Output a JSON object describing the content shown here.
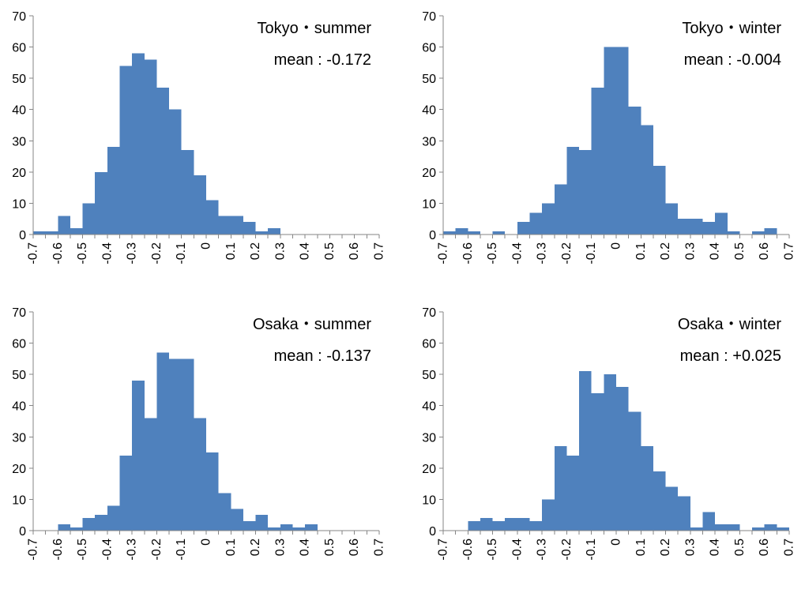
{
  "chart_data": [
    {
      "type": "bar",
      "title": "Tokyo・summer",
      "annotation": "mean : -0.172",
      "x_tick_labels": [
        "-0.7",
        "-0.6",
        "-0.5",
        "-0.4",
        "-0.3",
        "-0.2",
        "-0.1",
        "0",
        "0.1",
        "0.2",
        "0.3",
        "0.4",
        "0.5",
        "0.6",
        "0.7"
      ],
      "x_range": [
        -0.7,
        0.7
      ],
      "bin_width": 0.05,
      "ylim": [
        0,
        70
      ],
      "y_ticks": [
        0,
        10,
        20,
        30,
        40,
        50,
        60,
        70
      ],
      "values": [
        1,
        1,
        6,
        2,
        10,
        20,
        28,
        54,
        58,
        56,
        47,
        40,
        27,
        19,
        11,
        6,
        6,
        4,
        1,
        2,
        0,
        0,
        0,
        0,
        0,
        0,
        0,
        0
      ],
      "color": "#4f81bd",
      "grid": false
    },
    {
      "type": "bar",
      "title": "Tokyo・winter",
      "annotation": "mean : -0.004",
      "x_tick_labels": [
        "-0.7",
        "-0.6",
        "-0.5",
        "-0.4",
        "-0.3",
        "-0.2",
        "-0.1",
        "0",
        "0.1",
        "0.2",
        "0.3",
        "0.4",
        "0.5",
        "0.6",
        "0.7"
      ],
      "x_range": [
        -0.7,
        0.7
      ],
      "bin_width": 0.05,
      "ylim": [
        0,
        70
      ],
      "y_ticks": [
        0,
        10,
        20,
        30,
        40,
        50,
        60,
        70
      ],
      "values": [
        1,
        2,
        1,
        0,
        1,
        0,
        4,
        7,
        10,
        16,
        28,
        27,
        47,
        60,
        60,
        41,
        35,
        22,
        10,
        5,
        5,
        4,
        7,
        1,
        0,
        1,
        2,
        0
      ],
      "color": "#4f81bd",
      "grid": false
    },
    {
      "type": "bar",
      "title": "Osaka・summer",
      "annotation": "mean : -0.137",
      "x_tick_labels": [
        "-0.7",
        "-0.6",
        "-0.5",
        "-0.4",
        "-0.3",
        "-0.2",
        "-0.1",
        "0",
        "0.1",
        "0.2",
        "0.3",
        "0.4",
        "0.5",
        "0.6",
        "0.7"
      ],
      "x_range": [
        -0.7,
        0.7
      ],
      "bin_width": 0.05,
      "ylim": [
        0,
        70
      ],
      "y_ticks": [
        0,
        10,
        20,
        30,
        40,
        50,
        60,
        70
      ],
      "values": [
        0,
        0,
        2,
        1,
        4,
        5,
        8,
        24,
        48,
        36,
        57,
        55,
        55,
        36,
        25,
        12,
        7,
        3,
        5,
        1,
        2,
        1,
        2,
        0,
        0,
        0,
        0,
        0
      ],
      "color": "#4f81bd",
      "grid": false
    },
    {
      "type": "bar",
      "title": "Osaka・winter",
      "annotation": "mean : +0.025",
      "x_tick_labels": [
        "-0.7",
        "-0.6",
        "-0.5",
        "-0.4",
        "-0.3",
        "-0.2",
        "-0.1",
        "0",
        "0.1",
        "0.2",
        "0.3",
        "0.4",
        "0.5",
        "0.6",
        "0.7"
      ],
      "x_range": [
        -0.7,
        0.7
      ],
      "bin_width": 0.05,
      "ylim": [
        0,
        70
      ],
      "y_ticks": [
        0,
        10,
        20,
        30,
        40,
        50,
        60,
        70
      ],
      "values": [
        0,
        0,
        3,
        4,
        3,
        4,
        4,
        3,
        10,
        27,
        24,
        51,
        44,
        50,
        46,
        38,
        27,
        19,
        14,
        11,
        1,
        6,
        2,
        2,
        0,
        1,
        2,
        1
      ],
      "color": "#4f81bd",
      "grid": false
    }
  ]
}
